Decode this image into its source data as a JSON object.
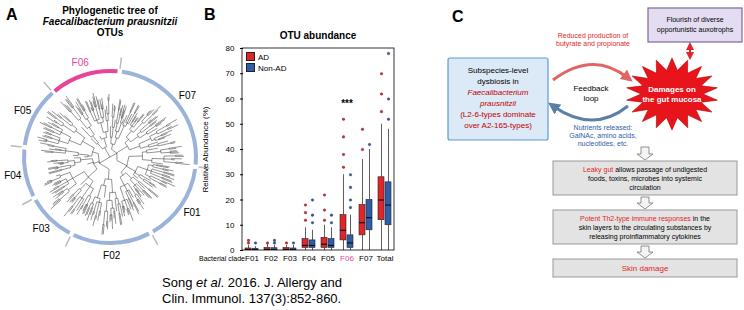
{
  "panel_a": {
    "label": "A",
    "title": [
      [
        {
          "text": "Phylogenetic tree of"
        }
      ],
      [
        {
          "text": "Faecalibacterium prausnitzii",
          "italic": true
        }
      ],
      [
        {
          "text": "OTUs"
        }
      ]
    ],
    "clades": [
      {
        "name": "F06",
        "color": "#e8459a",
        "label_color": "#e8459a"
      },
      {
        "name": "F07",
        "color": "#9bb3da",
        "label_color": "#000000"
      },
      {
        "name": "F01",
        "color": "#9bb3da",
        "label_color": "#000000"
      },
      {
        "name": "F02",
        "color": "#9bb3da",
        "label_color": "#000000"
      },
      {
        "name": "F03",
        "color": "#9bb3da",
        "label_color": "#000000"
      },
      {
        "name": "F04",
        "color": "#9bb3da",
        "label_color": "#000000"
      },
      {
        "name": "F05",
        "color": "#9bb3da",
        "label_color": "#000000"
      }
    ]
  },
  "chart_data": {
    "type": "box",
    "label": "B",
    "title": "OTU abundance",
    "x_label": "Bacterial clade",
    "y_label": "Relative Abundance (%)",
    "categories": [
      "F01",
      "F02",
      "F03",
      "F04",
      "F05",
      "F06",
      "F07",
      "Total"
    ],
    "category_colors": [
      "#000000",
      "#000000",
      "#000000",
      "#000000",
      "#000000",
      "#e8459a",
      "#000000",
      "#000000"
    ],
    "ylim": [
      0,
      80
    ],
    "yticks": [
      0,
      10,
      20,
      30,
      40,
      50,
      60,
      70,
      80
    ],
    "grid": false,
    "legend": "top-left",
    "series": [
      {
        "name": "AD",
        "color": "#e0262b",
        "boxes": [
          {
            "min": 0,
            "q1": 0,
            "median": 0.3,
            "q3": 0.8,
            "max": 2
          },
          {
            "min": 0,
            "q1": 0.1,
            "median": 0.4,
            "q3": 1,
            "max": 2.5
          },
          {
            "min": 0,
            "q1": 0.1,
            "median": 0.4,
            "q3": 1,
            "max": 2
          },
          {
            "min": 0,
            "q1": 1,
            "median": 2,
            "q3": 4.5,
            "max": 9
          },
          {
            "min": 0,
            "q1": 1,
            "median": 2.5,
            "q3": 5,
            "max": 10
          },
          {
            "min": 0,
            "q1": 4,
            "median": 8,
            "q3": 14,
            "max": 30
          },
          {
            "min": 0,
            "q1": 6,
            "median": 11,
            "q3": 18,
            "max": 36
          },
          {
            "min": 0,
            "q1": 12,
            "median": 20,
            "q3": 29,
            "max": 50
          }
        ],
        "outliers": [
          [
            3,
            4
          ],
          [
            3
          ],
          [
            3
          ],
          [
            12,
            15,
            18
          ],
          [
            12,
            16,
            22
          ],
          [
            33,
            38,
            45,
            52
          ],
          [
            40,
            48
          ],
          [
            55,
            62,
            70
          ]
        ]
      },
      {
        "name": "Non-AD",
        "color": "#2f5da8",
        "boxes": [
          {
            "min": 0,
            "q1": 0,
            "median": 0.3,
            "q3": 0.7,
            "max": 1.5
          },
          {
            "min": 0,
            "q1": 0.1,
            "median": 0.3,
            "q3": 0.9,
            "max": 2
          },
          {
            "min": 0,
            "q1": 0.1,
            "median": 0.3,
            "q3": 0.8,
            "max": 2
          },
          {
            "min": 0,
            "q1": 1,
            "median": 2,
            "q3": 4,
            "max": 8
          },
          {
            "min": 0,
            "q1": 1,
            "median": 2,
            "q3": 4.5,
            "max": 9
          },
          {
            "min": 0,
            "q1": 1,
            "median": 3,
            "q3": 6,
            "max": 14
          },
          {
            "min": 0,
            "q1": 8,
            "median": 13,
            "q3": 20,
            "max": 40
          },
          {
            "min": 0,
            "q1": 10,
            "median": 18,
            "q3": 27,
            "max": 48
          }
        ],
        "outliers": [
          [
            3
          ],
          [
            3,
            4
          ],
          [
            3
          ],
          [
            11,
            14,
            20
          ],
          [
            11,
            14
          ],
          [
            17,
            20,
            25,
            30
          ],
          [
            42
          ],
          [
            52,
            60,
            78
          ]
        ]
      }
    ],
    "annotations": [
      {
        "category": "F06",
        "text": "***",
        "y": 58
      }
    ]
  },
  "panel_c": {
    "label": "C",
    "dysbiosis_box": [
      [
        {
          "text": "Subspecies-level"
        }
      ],
      [
        {
          "text": "dysbiosis in"
        }
      ],
      [
        {
          "text": "Faecalibacterium",
          "italic": true,
          "color": "#c00000"
        }
      ],
      [
        {
          "text": "prausnitzii",
          "italic": true,
          "color": "#c00000"
        }
      ],
      [
        {
          "text": "(L2-6-types dominate",
          "color": "#c00000"
        }
      ],
      [
        {
          "text": "over A2-165-types)",
          "color": "#c00000"
        }
      ]
    ],
    "auxotrophs_box": [
      [
        {
          "text": "Flourish of diverse"
        }
      ],
      [
        {
          "text": "opportunistic auxotrophs"
        }
      ]
    ],
    "mucosa_damage": [
      [
        {
          "text": "Damages on"
        }
      ],
      [
        {
          "text": "the gut mucosa"
        }
      ]
    ],
    "feedback_loop": [
      [
        {
          "text": "Feedback"
        }
      ],
      [
        {
          "text": "loop"
        }
      ]
    ],
    "butyrate_note": [
      [
        {
          "text": "Reduced production of",
          "color": "#e0262b"
        }
      ],
      [
        {
          "text": "butyrate and propionate",
          "color": "#e0262b"
        }
      ]
    ],
    "nutrients_note": [
      [
        {
          "text": "Nutrients released:",
          "color": "#2f5da8"
        }
      ],
      [
        {
          "text": "GalNAc, amino acids,",
          "color": "#2f5da8"
        }
      ],
      [
        {
          "text": "nucleotides, etc.",
          "color": "#2f5da8"
        }
      ]
    ],
    "flow": [
      [
        [
          {
            "text": "Leaky gut",
            "color": "#e0262b"
          },
          {
            "text": " allows passage of undigested"
          }
        ],
        [
          {
            "text": "foods, toxins, microbes into systemic"
          }
        ],
        [
          {
            "text": "circulation"
          }
        ]
      ],
      [
        [
          {
            "text": "Potent Th2-type immune responses",
            "color": "#e0262b"
          },
          {
            "text": " in the"
          }
        ],
        [
          {
            "text": "skin layers to the circulating substances by"
          }
        ],
        [
          {
            "text": "releasing proinflammatory cytokines"
          }
        ]
      ],
      [
        [
          {
            "text": "Skin damage",
            "color": "#e0262b"
          }
        ]
      ]
    ]
  },
  "citation": [
    [
      {
        "text": "Song "
      },
      {
        "text": "et al",
        "italic": true
      },
      {
        "text": ". 2016. J. Allergy and"
      }
    ],
    [
      {
        "text": "Clin. Immunol. 137(3):852-860."
      }
    ]
  ]
}
